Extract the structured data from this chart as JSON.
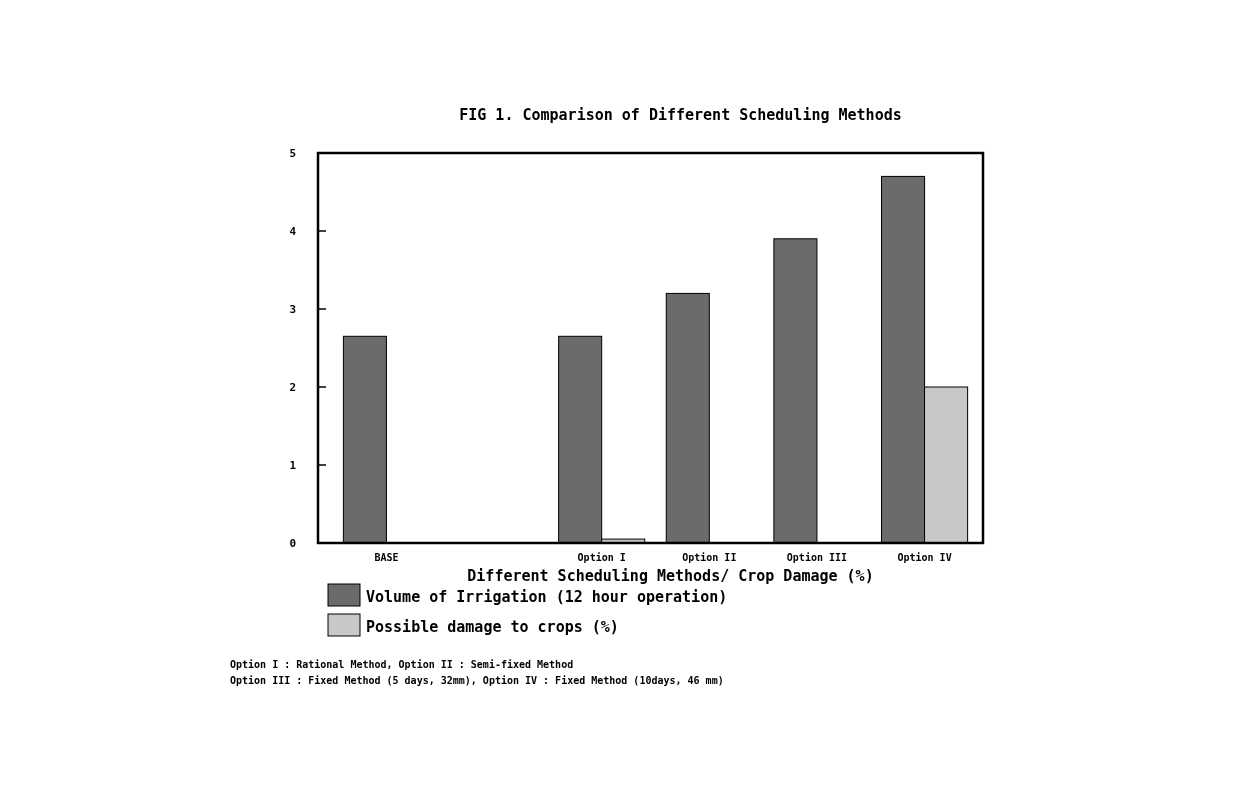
{
  "chart_data": {
    "type": "bar",
    "title": "FIG 1.  Comparison of Different Scheduling Methods",
    "xlabel": "Different Scheduling Methods/ Crop Damage (%)",
    "categories": [
      "BASE",
      null,
      "Option I",
      "Option II",
      "Option III",
      "Option IV"
    ],
    "series": [
      {
        "name": "Volume of Irrigation (12 hour operation)",
        "color": "#6b6b6b",
        "values": [
          2.65,
          null,
          2.65,
          3.2,
          3.9,
          4.7
        ]
      },
      {
        "name": "Possible damage to crops (%)",
        "color": "#c8c8c8",
        "values": [
          null,
          null,
          0.05,
          null,
          null,
          2.0
        ]
      }
    ],
    "ylim": [
      0,
      5
    ],
    "yticks": [
      0,
      1,
      2,
      3,
      4,
      5
    ],
    "grid": false,
    "legend": "bottom",
    "annotations": [
      "Option I : Rational Method, Option II : Semi-fixed Method",
      "Option III : Fixed Method (5 days, 32mm), Option IV : Fixed Method (10days, 46 mm)"
    ]
  }
}
